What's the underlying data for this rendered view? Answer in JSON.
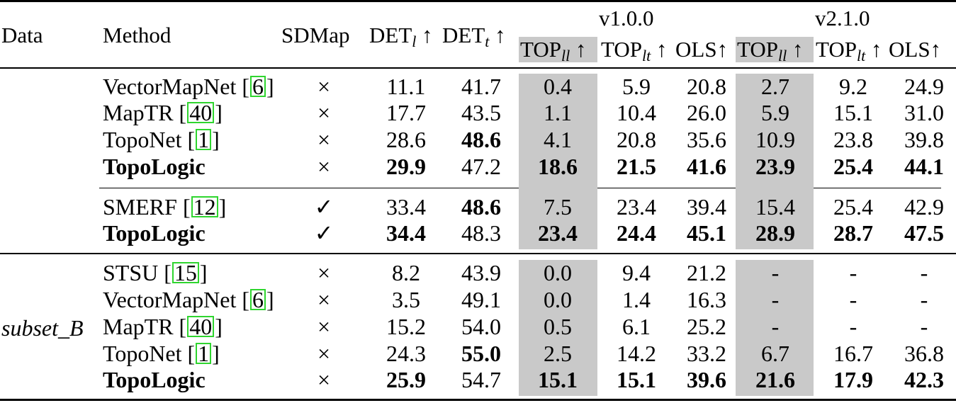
{
  "header": {
    "data": "Data",
    "method": "Method",
    "sdmap": "SDMap",
    "det_l": {
      "base": "DET",
      "sub": "l",
      "arrow": "↑"
    },
    "det_t": {
      "base": "DET",
      "sub": "t",
      "arrow": "↑"
    },
    "version_1": "v1.0.0",
    "version_2": "v2.1.0",
    "top_ll": {
      "base": "TOP",
      "sub": "ll",
      "arrow": "↑"
    },
    "top_lt": {
      "base": "TOP",
      "sub": "lt",
      "arrow": "↑"
    },
    "ols": {
      "base": "OLS",
      "arrow": "↑"
    }
  },
  "group_b_label": "subset_B",
  "rows": [
    {
      "name": "VectorMapNet [",
      "ref": "6",
      "close": "]",
      "sd": "×",
      "det_l": "11.1",
      "det_t": "41.7",
      "v1_top_ll": "0.4",
      "v1_top_lt": "5.9",
      "v1_ols": "20.8",
      "v2_top_ll": "2.7",
      "v2_top_lt": "9.2",
      "v2_ols": "24.9"
    },
    {
      "name": "MapTR [",
      "ref": "40",
      "close": "]",
      "sd": "×",
      "det_l": "17.7",
      "det_t": "43.5",
      "v1_top_ll": "1.1",
      "v1_top_lt": "10.4",
      "v1_ols": "26.0",
      "v2_top_ll": "5.9",
      "v2_top_lt": "15.1",
      "v2_ols": "31.0"
    },
    {
      "name": "TopoNet [",
      "ref": "1",
      "close": "]",
      "sd": "×",
      "det_l": "28.6",
      "det_t": "48.6",
      "v1_top_ll": "4.1",
      "v1_top_lt": "20.8",
      "v1_ols": "35.6",
      "v2_top_ll": "10.9",
      "v2_top_lt": "23.8",
      "v2_ols": "39.8"
    },
    {
      "name": "TopoLogic",
      "sd": "×",
      "det_l": "29.9",
      "det_t": "47.2",
      "v1_top_ll": "18.6",
      "v1_top_lt": "21.5",
      "v1_ols": "41.6",
      "v2_top_ll": "23.9",
      "v2_top_lt": "25.4",
      "v2_ols": "44.1"
    },
    {
      "name": "SMERF [",
      "ref": "12",
      "close": "]",
      "sd": "✓",
      "det_l": "33.4",
      "det_t": "48.6",
      "v1_top_ll": "7.5",
      "v1_top_lt": "23.4",
      "v1_ols": "39.4",
      "v2_top_ll": "15.4",
      "v2_top_lt": "25.4",
      "v2_ols": "42.9"
    },
    {
      "name": "TopoLogic",
      "sd": "✓",
      "det_l": "34.4",
      "det_t": "48.3",
      "v1_top_ll": "23.4",
      "v1_top_lt": "24.4",
      "v1_ols": "45.1",
      "v2_top_ll": "28.9",
      "v2_top_lt": "28.7",
      "v2_ols": "47.5"
    },
    {
      "name": "STSU [",
      "ref": "15",
      "close": "]",
      "sd": "×",
      "det_l": "8.2",
      "det_t": "43.9",
      "v1_top_ll": "0.0",
      "v1_top_lt": "9.4",
      "v1_ols": "21.2",
      "v2_top_ll": "-",
      "v2_top_lt": "-",
      "v2_ols": "-"
    },
    {
      "name": "VectorMapNet [",
      "ref": "6",
      "close": "]",
      "sd": "×",
      "det_l": "3.5",
      "det_t": "49.1",
      "v1_top_ll": "0.0",
      "v1_top_lt": "1.4",
      "v1_ols": "16.3",
      "v2_top_ll": "-",
      "v2_top_lt": "-",
      "v2_ols": "-"
    },
    {
      "name": "MapTR [",
      "ref": "40",
      "close": "]",
      "sd": "×",
      "det_l": "15.2",
      "det_t": "54.0",
      "v1_top_ll": "0.5",
      "v1_top_lt": "6.1",
      "v1_ols": "25.2",
      "v2_top_ll": "-",
      "v2_top_lt": "-",
      "v2_ols": "-"
    },
    {
      "name": "TopoNet [",
      "ref": "1",
      "close": "]",
      "sd": "×",
      "det_l": "24.3",
      "det_t": "55.0",
      "v1_top_ll": "2.5",
      "v1_top_lt": "14.2",
      "v1_ols": "33.2",
      "v2_top_ll": "6.7",
      "v2_top_lt": "16.7",
      "v2_ols": "36.8"
    },
    {
      "name": "TopoLogic",
      "sd": "×",
      "det_l": "25.9",
      "det_t": "54.7",
      "v1_top_ll": "15.1",
      "v1_top_lt": "15.1",
      "v1_ols": "39.6",
      "v2_top_ll": "21.6",
      "v2_top_lt": "17.9",
      "v2_ols": "42.3"
    }
  ]
}
